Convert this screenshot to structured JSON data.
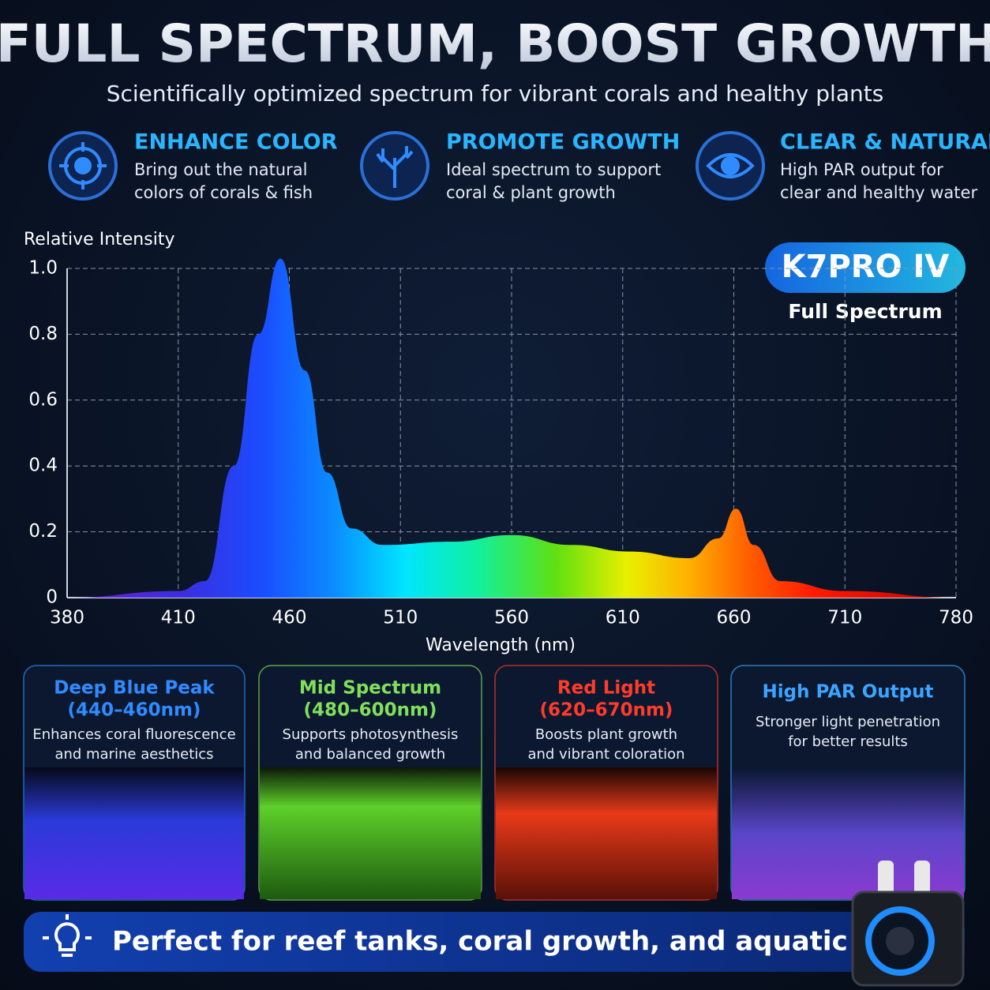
{
  "header": {
    "title": "FULL SPECTRUM, BOOST GROWTH",
    "subtitle": "Scientifically optimized spectrum for vibrant corals and healthy plants"
  },
  "features": [
    {
      "title": "ENHANCE COLOR",
      "lines": [
        "Bring out the natural",
        "colors of corals & fish"
      ]
    },
    {
      "title": "PROMOTE GROWTH",
      "lines": [
        "Ideal spectrum to support",
        "coral & plant growth"
      ]
    },
    {
      "title": "CLEAR & NATURAL",
      "lines": [
        "High PAR output for",
        "clear and healthy water"
      ]
    }
  ],
  "badge": {
    "model": "K7PRO IV",
    "label": "Full Spectrum"
  },
  "chart_data": {
    "type": "area",
    "x_label": "Wavelength (nm)",
    "y_label": "Relative Intensity",
    "x": [
      380,
      410,
      422,
      435,
      446,
      456,
      467,
      477,
      488,
      502,
      533,
      560,
      587,
      613,
      640,
      653,
      661,
      669,
      681,
      710,
      780
    ],
    "values": [
      0,
      0.02,
      0.05,
      0.4,
      0.8,
      1.03,
      0.69,
      0.38,
      0.21,
      0.16,
      0.17,
      0.19,
      0.16,
      0.14,
      0.12,
      0.18,
      0.27,
      0.16,
      0.05,
      0.02,
      0
    ],
    "xlim": [
      380,
      780
    ],
    "xticks": [
      380,
      410,
      460,
      510,
      560,
      610,
      660,
      710,
      780
    ],
    "ylim": [
      0,
      1.0
    ],
    "yticks": [
      0,
      0.2,
      0.4,
      0.6,
      0.8,
      {
        "value": 1,
        "label": "1.0"
      }
    ],
    "grid": true
  },
  "cards": [
    {
      "title": [
        "Deep Blue Peak",
        "(440–460nm)"
      ],
      "lines": [
        "Enhances coral fluorescence",
        "and marine aesthetics"
      ],
      "color": "#2f8bff"
    },
    {
      "title": [
        "Mid Spectrum",
        "(480–600nm)"
      ],
      "lines": [
        "Supports photosynthesis",
        "and balanced growth"
      ],
      "color": "#7fe05a"
    },
    {
      "title": [
        "Red Light",
        "(620–670nm)"
      ],
      "lines": [
        "Boosts plant growth",
        "and vibrant coloration"
      ],
      "color": "#ff3b2a"
    },
    {
      "title": [
        "High PAR Output"
      ],
      "lines": [
        "Stronger light penetration",
        "for better results"
      ],
      "color": "#3aa5ff"
    }
  ],
  "banner": {
    "text": "Perfect for reef tanks, coral growth, and aquatic plants"
  }
}
